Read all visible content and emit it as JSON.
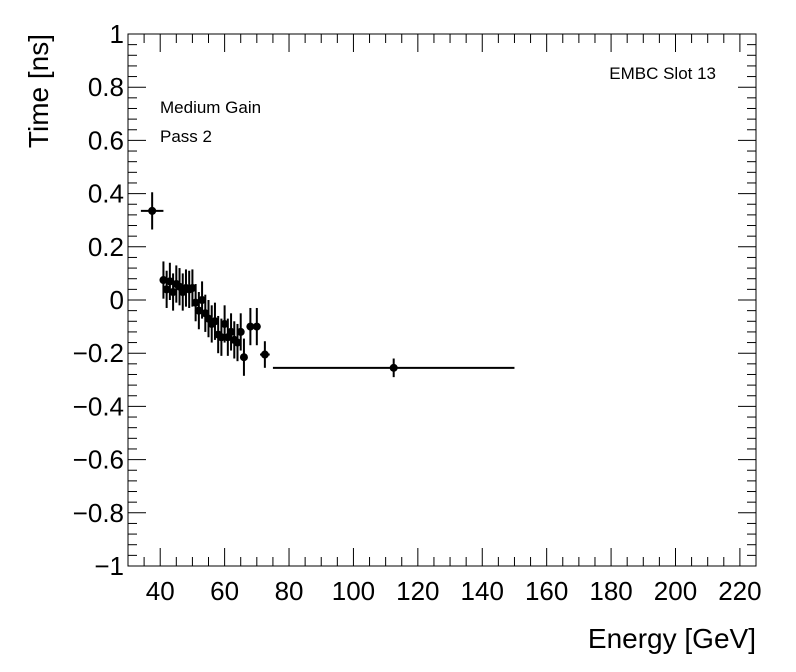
{
  "chart_data": {
    "type": "scatter",
    "title": "",
    "xlabel": "Energy [GeV]",
    "ylabel": "Time [ns]",
    "xlim": [
      30,
      225
    ],
    "ylim": [
      -1,
      1
    ],
    "xticks": [
      40,
      60,
      80,
      100,
      120,
      140,
      160,
      180,
      200,
      220
    ],
    "yticks": [
      -1,
      -0.8,
      -0.6,
      -0.4,
      -0.2,
      0,
      0.2,
      0.4,
      0.6,
      0.8,
      1
    ],
    "xtick_labels": [
      "40",
      "60",
      "80",
      "100",
      "120",
      "140",
      "160",
      "180",
      "200",
      "220"
    ],
    "ytick_labels": [
      "−1",
      "−0.8",
      "−0.6",
      "−0.4",
      "−0.2",
      "0",
      "0.2",
      "0.4",
      "0.6",
      "0.8",
      "1"
    ],
    "annotations": {
      "gain": "Medium Gain",
      "pass": "Pass 2",
      "slot": "EMBC Slot 13"
    },
    "series": [
      {
        "name": "EMBC Slot 13",
        "points": [
          {
            "x": 37.5,
            "y": 0.335,
            "xerr": 3.5,
            "yerr": 0.07
          },
          {
            "x": 41.0,
            "y": 0.075,
            "xerr": 0.5,
            "yerr": 0.07
          },
          {
            "x": 42.0,
            "y": 0.04,
            "xerr": 0.5,
            "yerr": 0.07
          },
          {
            "x": 43.0,
            "y": 0.07,
            "xerr": 0.5,
            "yerr": 0.07
          },
          {
            "x": 44.0,
            "y": 0.03,
            "xerr": 0.5,
            "yerr": 0.07
          },
          {
            "x": 45.0,
            "y": 0.06,
            "xerr": 0.5,
            "yerr": 0.07
          },
          {
            "x": 46.0,
            "y": 0.05,
            "xerr": 0.5,
            "yerr": 0.07
          },
          {
            "x": 47.0,
            "y": 0.03,
            "xerr": 0.5,
            "yerr": 0.07
          },
          {
            "x": 48.0,
            "y": 0.045,
            "xerr": 0.5,
            "yerr": 0.07
          },
          {
            "x": 49.0,
            "y": 0.04,
            "xerr": 0.5,
            "yerr": 0.07
          },
          {
            "x": 50.0,
            "y": 0.045,
            "xerr": 0.5,
            "yerr": 0.07
          },
          {
            "x": 51.0,
            "y": -0.01,
            "xerr": 0.5,
            "yerr": 0.07
          },
          {
            "x": 52.0,
            "y": -0.04,
            "xerr": 0.5,
            "yerr": 0.07
          },
          {
            "x": 53.0,
            "y": 0.0,
            "xerr": 0.5,
            "yerr": 0.07
          },
          {
            "x": 54.0,
            "y": -0.05,
            "xerr": 0.5,
            "yerr": 0.07
          },
          {
            "x": 55.0,
            "y": -0.07,
            "xerr": 0.5,
            "yerr": 0.07
          },
          {
            "x": 56.0,
            "y": -0.09,
            "xerr": 0.5,
            "yerr": 0.07
          },
          {
            "x": 57.0,
            "y": -0.08,
            "xerr": 0.5,
            "yerr": 0.07
          },
          {
            "x": 58.0,
            "y": -0.13,
            "xerr": 0.5,
            "yerr": 0.07
          },
          {
            "x": 59.0,
            "y": -0.14,
            "xerr": 0.5,
            "yerr": 0.07
          },
          {
            "x": 60.0,
            "y": -0.09,
            "xerr": 0.5,
            "yerr": 0.07
          },
          {
            "x": 61.0,
            "y": -0.14,
            "xerr": 0.5,
            "yerr": 0.07
          },
          {
            "x": 62.0,
            "y": -0.12,
            "xerr": 0.5,
            "yerr": 0.07
          },
          {
            "x": 63.0,
            "y": -0.15,
            "xerr": 0.5,
            "yerr": 0.07
          },
          {
            "x": 64.0,
            "y": -0.16,
            "xerr": 0.5,
            "yerr": 0.07
          },
          {
            "x": 65.0,
            "y": -0.12,
            "xerr": 0.5,
            "yerr": 0.07
          },
          {
            "x": 66.0,
            "y": -0.215,
            "xerr": 0.5,
            "yerr": 0.07
          },
          {
            "x": 68.0,
            "y": -0.1,
            "xerr": 1.0,
            "yerr": 0.07
          },
          {
            "x": 70.0,
            "y": -0.1,
            "xerr": 1.0,
            "yerr": 0.07
          },
          {
            "x": 72.5,
            "y": -0.205,
            "xerr": 1.5,
            "yerr": 0.05
          },
          {
            "x": 112.5,
            "y": -0.255,
            "xerr": 37.5,
            "yerr": 0.035
          }
        ]
      }
    ]
  }
}
